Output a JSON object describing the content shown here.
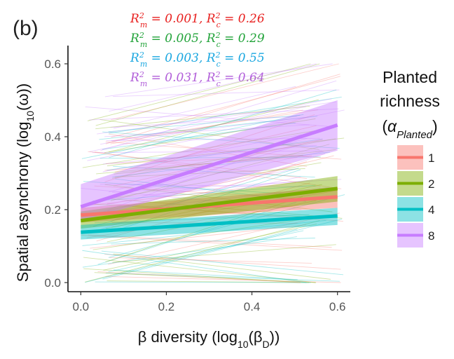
{
  "panel_label": "(b)",
  "annotations": [
    {
      "text": "R²m = 0.001, R²c = 0.26",
      "color": "#e8201f",
      "rm": "0.001",
      "rc": "0.26"
    },
    {
      "text": "R²m = 0.005, R²c = 0.29",
      "color": "#22a33a",
      "rm": "0.005",
      "rc": "0.29"
    },
    {
      "text": "R²m = 0.003, R²c = 0.55",
      "color": "#1ba7e0",
      "rm": "0.003",
      "rc": "0.55"
    },
    {
      "text": "R²m = 0.031, R²c = 0.64",
      "color": "#b15ed9",
      "rm": "0.031",
      "rc": "0.64"
    }
  ],
  "legend": {
    "title_lines": [
      "Planted",
      "richness"
    ],
    "title_symbol": "α",
    "title_subscript": "Planted"
  },
  "chart_data": {
    "type": "line",
    "xlabel": "β diversity (log10(βD))",
    "ylabel": "Spatial asynchrony (log10(ω))",
    "xlim": [
      -0.03,
      0.63
    ],
    "ylim": [
      -0.025,
      0.65
    ],
    "x_ticks": [
      0.0,
      0.2,
      0.4,
      0.6
    ],
    "x_tick_labels": [
      "0.0",
      "0.2",
      "0.4",
      "0.6"
    ],
    "y_ticks": [
      0.0,
      0.2,
      0.4,
      0.6
    ],
    "y_tick_labels": [
      "0.0",
      "0.2",
      "0.4",
      "0.6"
    ],
    "grid": false,
    "legend_position": "right",
    "series": [
      {
        "name": "1",
        "color": "#f8766d",
        "x": [
          0.0,
          0.6
        ],
        "y": [
          0.185,
          0.235
        ],
        "ci_lower": [
          0.165,
          0.205
        ],
        "ci_upper": [
          0.205,
          0.262
        ]
      },
      {
        "name": "2",
        "color": "#7cae00",
        "x": [
          0.0,
          0.6
        ],
        "y": [
          0.17,
          0.258
        ],
        "ci_lower": [
          0.148,
          0.222
        ],
        "ci_upper": [
          0.195,
          0.292
        ]
      },
      {
        "name": "4",
        "color": "#00bfc4",
        "x": [
          0.0,
          0.6
        ],
        "y": [
          0.138,
          0.183
        ],
        "ci_lower": [
          0.118,
          0.158
        ],
        "ci_upper": [
          0.158,
          0.205
        ]
      },
      {
        "name": "8",
        "color": "#c77cff",
        "x": [
          0.0,
          0.6
        ],
        "y": [
          0.208,
          0.432
        ],
        "ci_lower": [
          0.17,
          0.362
        ],
        "ci_upper": [
          0.27,
          0.5
        ]
      }
    ]
  }
}
